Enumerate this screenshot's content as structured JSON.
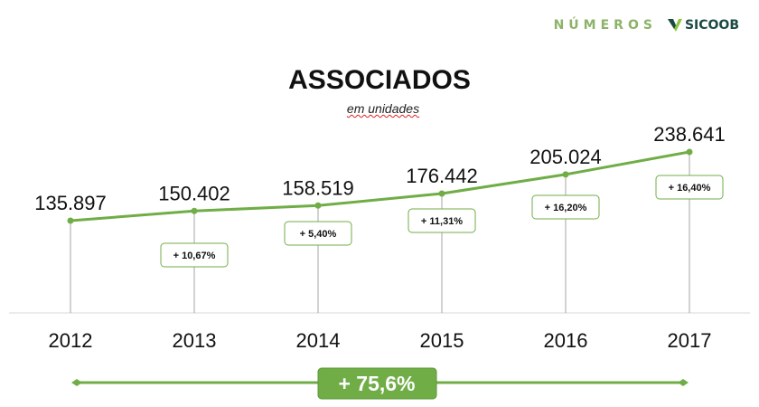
{
  "brand": {
    "numeros": "NÚMEROS",
    "sicoob": "SICOOB"
  },
  "chart_data": {
    "type": "line",
    "title": "ASSOCIADOS",
    "subtitle": "em unidades",
    "categories": [
      "2012",
      "2013",
      "2014",
      "2015",
      "2016",
      "2017"
    ],
    "values": [
      135897,
      150402,
      158519,
      176442,
      205024,
      238641
    ],
    "value_labels": [
      "135.897",
      "150.402",
      "158.519",
      "176.442",
      "205.024",
      "238.641"
    ],
    "growth_labels": [
      "",
      "+ 10,67%",
      "+ 5,40%",
      "+ 11,31%",
      "+ 16,20%",
      "+ 16,40%"
    ],
    "total_growth_label": "+ 75,6%",
    "color": "#70ad47",
    "grid": false,
    "legend": "none"
  }
}
